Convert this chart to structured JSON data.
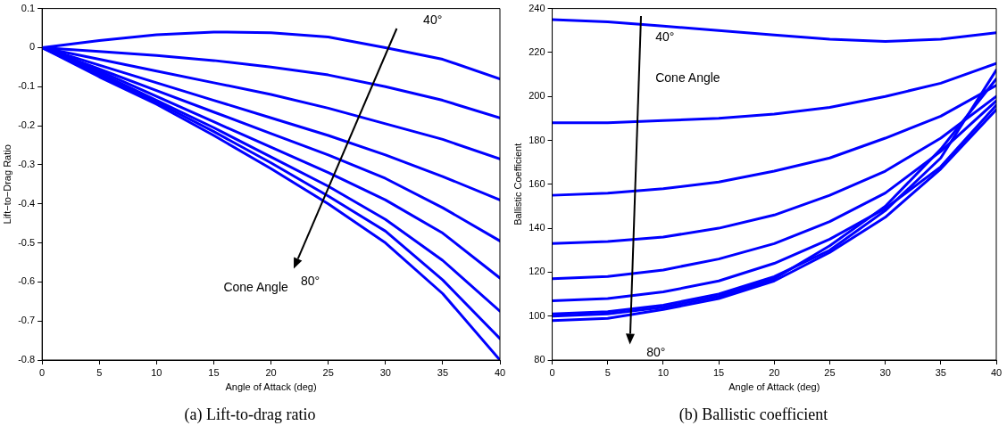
{
  "chart_data": [
    {
      "type": "line",
      "title": "(a) Lift-to-drag ratio",
      "xlabel": "Angle of Attack (deg)",
      "ylabel": "Lift−to−Drag Ratio",
      "x": [
        0,
        5,
        10,
        15,
        20,
        25,
        30,
        35,
        40
      ],
      "xlim": [
        0,
        40
      ],
      "xticks": [
        0,
        5,
        10,
        15,
        20,
        25,
        30,
        35,
        40
      ],
      "ylim": [
        -0.8,
        0.1
      ],
      "yticks": [
        -0.8,
        -0.7,
        -0.6,
        -0.5,
        -0.4,
        -0.3,
        -0.2,
        -0.1,
        0,
        0.1
      ],
      "grid": false,
      "legend": false,
      "marker": "none",
      "line_style": "solid",
      "annotations": [
        "40°",
        "Cone Angle",
        "80°"
      ],
      "series": [
        {
          "color": "#0000ff",
          "values": [
            0,
            0.018,
            0.033,
            0.04,
            0.038,
            0.027,
            0.0,
            -0.03,
            -0.08
          ]
        },
        {
          "color": "#0000ff",
          "values": [
            0,
            -0.01,
            -0.02,
            -0.033,
            -0.05,
            -0.07,
            -0.1,
            -0.135,
            -0.18
          ]
        },
        {
          "color": "#0000ff",
          "values": [
            0,
            -0.03,
            -0.06,
            -0.09,
            -0.12,
            -0.155,
            -0.195,
            -0.235,
            -0.285
          ]
        },
        {
          "color": "#0000ff",
          "values": [
            0,
            -0.045,
            -0.09,
            -0.135,
            -0.18,
            -0.225,
            -0.275,
            -0.33,
            -0.39
          ]
        },
        {
          "color": "#0000ff",
          "values": [
            0,
            -0.055,
            -0.11,
            -0.165,
            -0.22,
            -0.275,
            -0.335,
            -0.41,
            -0.495
          ]
        },
        {
          "color": "#0000ff",
          "values": [
            0,
            -0.06,
            -0.125,
            -0.19,
            -0.255,
            -0.32,
            -0.39,
            -0.475,
            -0.59
          ]
        },
        {
          "color": "#0000ff",
          "values": [
            0,
            -0.065,
            -0.135,
            -0.205,
            -0.28,
            -0.355,
            -0.44,
            -0.545,
            -0.675
          ]
        },
        {
          "color": "#0000ff",
          "values": [
            0,
            -0.07,
            -0.14,
            -0.215,
            -0.295,
            -0.38,
            -0.47,
            -0.595,
            -0.745
          ]
        },
        {
          "color": "#0000ff",
          "values": [
            0,
            -0.075,
            -0.145,
            -0.225,
            -0.31,
            -0.4,
            -0.5,
            -0.63,
            -0.8
          ]
        }
      ]
    },
    {
      "type": "line",
      "title": "(b) Ballistic coefficient",
      "xlabel": "Angle of Attack (deg)",
      "ylabel": "Ballistic Coefficient",
      "x": [
        0,
        5,
        10,
        15,
        20,
        25,
        30,
        35,
        40
      ],
      "xlim": [
        0,
        40
      ],
      "xticks": [
        0,
        5,
        10,
        15,
        20,
        25,
        30,
        35,
        40
      ],
      "ylim": [
        80,
        240
      ],
      "yticks": [
        80,
        100,
        120,
        140,
        160,
        180,
        200,
        220,
        240
      ],
      "grid": false,
      "legend": false,
      "marker": "none",
      "line_style": "solid",
      "annotations": [
        "40°",
        "Cone Angle",
        "80°"
      ],
      "series": [
        {
          "color": "#0000ff",
          "values": [
            235,
            234,
            232,
            230,
            228,
            226,
            225,
            226,
            229
          ]
        },
        {
          "color": "#0000ff",
          "values": [
            188,
            188,
            189,
            190,
            192,
            195,
            200,
            206,
            215
          ]
        },
        {
          "color": "#0000ff",
          "values": [
            155,
            156,
            158,
            161,
            166,
            172,
            181,
            191,
            205
          ]
        },
        {
          "color": "#0000ff",
          "values": [
            133,
            134,
            136,
            140,
            146,
            155,
            166,
            181,
            200
          ]
        },
        {
          "color": "#0000ff",
          "values": [
            117,
            118,
            121,
            126,
            133,
            143,
            156,
            175,
            198
          ]
        },
        {
          "color": "#0000ff",
          "values": [
            107,
            108,
            111,
            116,
            124,
            135,
            149,
            168,
            196
          ]
        },
        {
          "color": "#0000ff",
          "values": [
            101,
            102,
            105,
            110,
            118,
            130,
            148,
            172,
            212
          ]
        },
        {
          "color": "#0000ff",
          "values": [
            100,
            101,
            104,
            109,
            117,
            132,
            150,
            176,
            208
          ]
        },
        {
          "color": "#0000ff",
          "values": [
            98,
            99,
            103,
            108,
            116,
            129,
            145,
            167,
            194
          ]
        }
      ]
    }
  ]
}
